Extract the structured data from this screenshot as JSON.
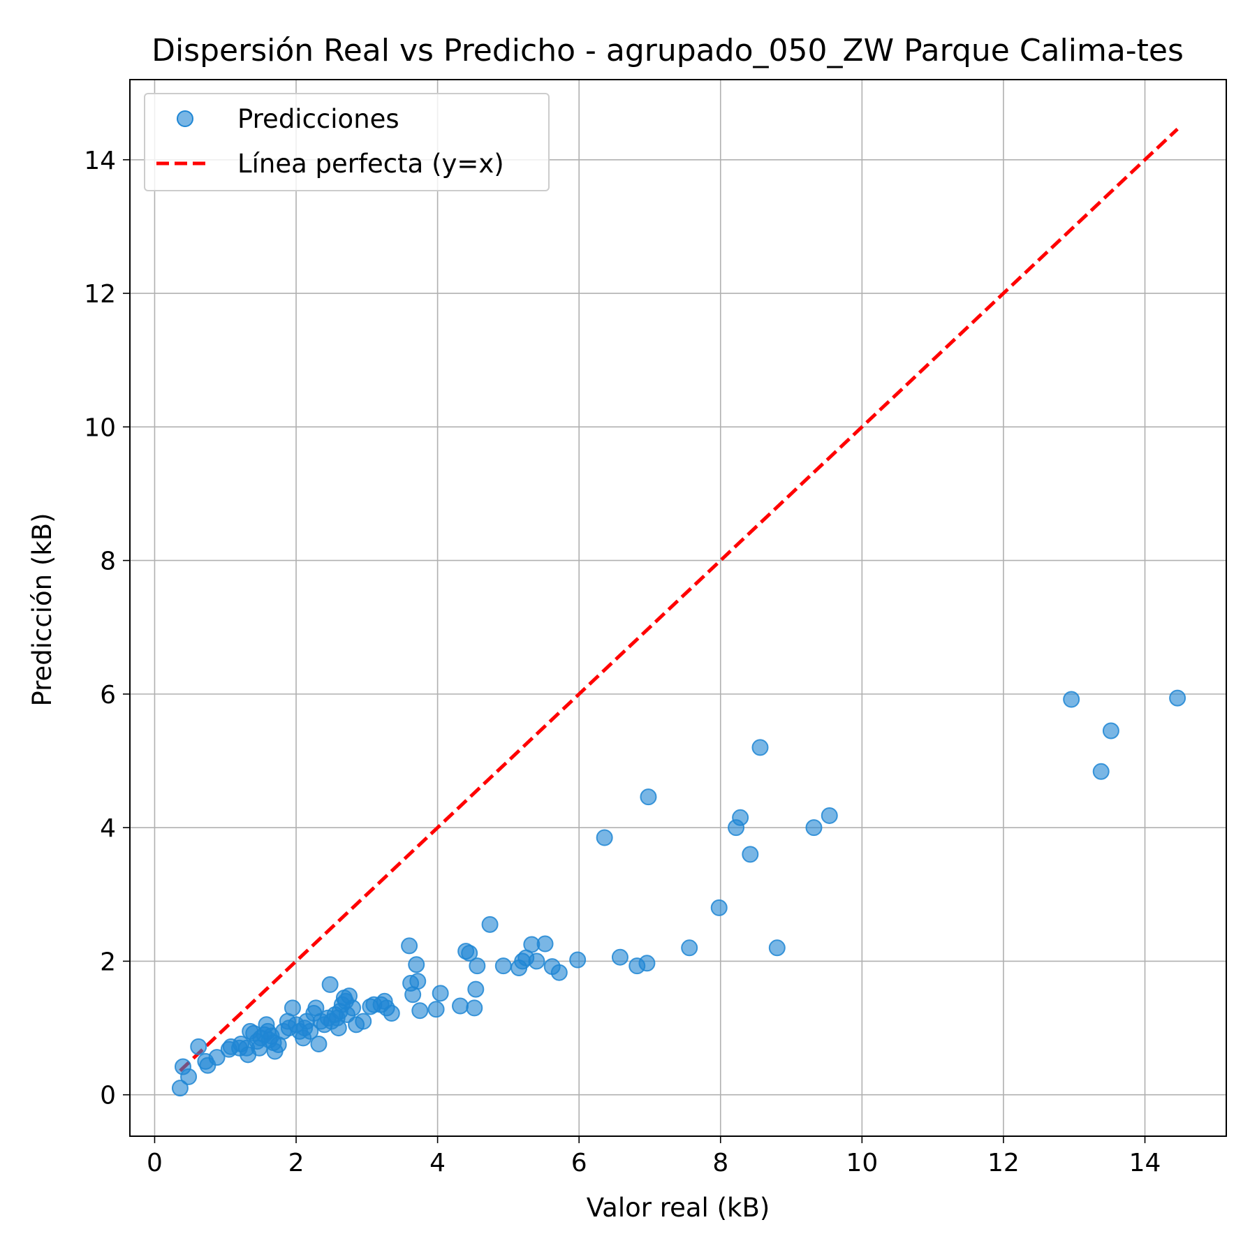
{
  "chart_data": {
    "type": "scatter",
    "title": "Dispersión Real vs Predicho - agrupado_050_ZW Parque Calima-tes",
    "xlabel": "Valor real (kB)",
    "ylabel": "Predicción (kB)",
    "xlim": [
      -0.35,
      15.15
    ],
    "ylim": [
      -0.62,
      15.2
    ],
    "xticks": [
      0,
      2,
      4,
      6,
      8,
      10,
      12,
      14
    ],
    "yticks": [
      0,
      2,
      4,
      6,
      8,
      10,
      12,
      14
    ],
    "xtick_labels": [
      "0",
      "2",
      "4",
      "6",
      "8",
      "10",
      "12",
      "14"
    ],
    "ytick_labels": [
      "0",
      "2",
      "4",
      "6",
      "8",
      "10",
      "12",
      "14"
    ],
    "grid": true,
    "legend_position": "top-left",
    "series": [
      {
        "name": "Predicciones",
        "kind": "scatter",
        "color": "#1f86d4",
        "alpha": 0.6,
        "points": [
          [
            0.36,
            0.1
          ],
          [
            0.4,
            0.42
          ],
          [
            0.48,
            0.27
          ],
          [
            0.62,
            0.72
          ],
          [
            0.72,
            0.5
          ],
          [
            0.75,
            0.44
          ],
          [
            0.88,
            0.56
          ],
          [
            1.05,
            0.68
          ],
          [
            1.08,
            0.72
          ],
          [
            1.2,
            0.7
          ],
          [
            1.22,
            0.76
          ],
          [
            1.3,
            0.7
          ],
          [
            1.32,
            0.6
          ],
          [
            1.35,
            0.95
          ],
          [
            1.4,
            0.92
          ],
          [
            1.45,
            0.8
          ],
          [
            1.48,
            0.7
          ],
          [
            1.5,
            0.85
          ],
          [
            1.55,
            0.9
          ],
          [
            1.58,
            1.05
          ],
          [
            1.6,
            0.95
          ],
          [
            1.62,
            0.82
          ],
          [
            1.65,
            0.88
          ],
          [
            1.68,
            0.78
          ],
          [
            1.7,
            0.65
          ],
          [
            1.75,
            0.75
          ],
          [
            1.82,
            0.95
          ],
          [
            1.88,
            1.1
          ],
          [
            1.9,
            1.0
          ],
          [
            1.95,
            1.3
          ],
          [
            2.0,
            1.05
          ],
          [
            2.05,
            0.95
          ],
          [
            2.1,
            0.85
          ],
          [
            2.12,
            1.0
          ],
          [
            2.15,
            1.1
          ],
          [
            2.2,
            0.95
          ],
          [
            2.25,
            1.22
          ],
          [
            2.28,
            1.3
          ],
          [
            2.32,
            0.76
          ],
          [
            2.35,
            1.1
          ],
          [
            2.4,
            1.05
          ],
          [
            2.45,
            1.15
          ],
          [
            2.48,
            1.65
          ],
          [
            2.5,
            1.1
          ],
          [
            2.55,
            1.2
          ],
          [
            2.58,
            1.15
          ],
          [
            2.6,
            1.0
          ],
          [
            2.62,
            1.25
          ],
          [
            2.65,
            1.35
          ],
          [
            2.68,
            1.45
          ],
          [
            2.7,
            1.4
          ],
          [
            2.72,
            1.2
          ],
          [
            2.75,
            1.48
          ],
          [
            2.8,
            1.3
          ],
          [
            2.85,
            1.05
          ],
          [
            2.95,
            1.1
          ],
          [
            3.05,
            1.32
          ],
          [
            3.1,
            1.35
          ],
          [
            3.2,
            1.35
          ],
          [
            3.25,
            1.4
          ],
          [
            3.28,
            1.3
          ],
          [
            3.35,
            1.22
          ],
          [
            3.6,
            2.23
          ],
          [
            3.62,
            1.67
          ],
          [
            3.65,
            1.5
          ],
          [
            3.7,
            1.95
          ],
          [
            3.72,
            1.7
          ],
          [
            3.75,
            1.26
          ],
          [
            3.98,
            1.28
          ],
          [
            4.04,
            1.52
          ],
          [
            4.32,
            1.33
          ],
          [
            4.4,
            2.15
          ],
          [
            4.45,
            2.12
          ],
          [
            4.52,
            1.3
          ],
          [
            4.54,
            1.58
          ],
          [
            4.56,
            1.93
          ],
          [
            4.74,
            2.55
          ],
          [
            4.93,
            1.93
          ],
          [
            5.15,
            1.9
          ],
          [
            5.2,
            2.0
          ],
          [
            5.25,
            2.05
          ],
          [
            5.33,
            2.25
          ],
          [
            5.4,
            2.0
          ],
          [
            5.52,
            2.26
          ],
          [
            5.62,
            1.92
          ],
          [
            5.72,
            1.83
          ],
          [
            5.98,
            2.02
          ],
          [
            6.36,
            3.85
          ],
          [
            6.58,
            2.06
          ],
          [
            6.82,
            1.93
          ],
          [
            6.96,
            1.97
          ],
          [
            6.98,
            4.46
          ],
          [
            7.56,
            2.2
          ],
          [
            7.98,
            2.8
          ],
          [
            8.22,
            4.0
          ],
          [
            8.28,
            4.15
          ],
          [
            8.42,
            3.6
          ],
          [
            8.56,
            5.2
          ],
          [
            8.8,
            2.2
          ],
          [
            9.32,
            4.0
          ],
          [
            9.54,
            4.18
          ],
          [
            12.96,
            5.92
          ],
          [
            13.38,
            4.84
          ],
          [
            13.52,
            5.45
          ],
          [
            14.46,
            5.94
          ]
        ]
      },
      {
        "name": "Línea perfecta (y=x)",
        "kind": "line",
        "color": "#ff0000",
        "dash": "dashed",
        "points": [
          [
            0.36,
            0.36
          ],
          [
            14.46,
            14.46
          ]
        ]
      }
    ]
  }
}
